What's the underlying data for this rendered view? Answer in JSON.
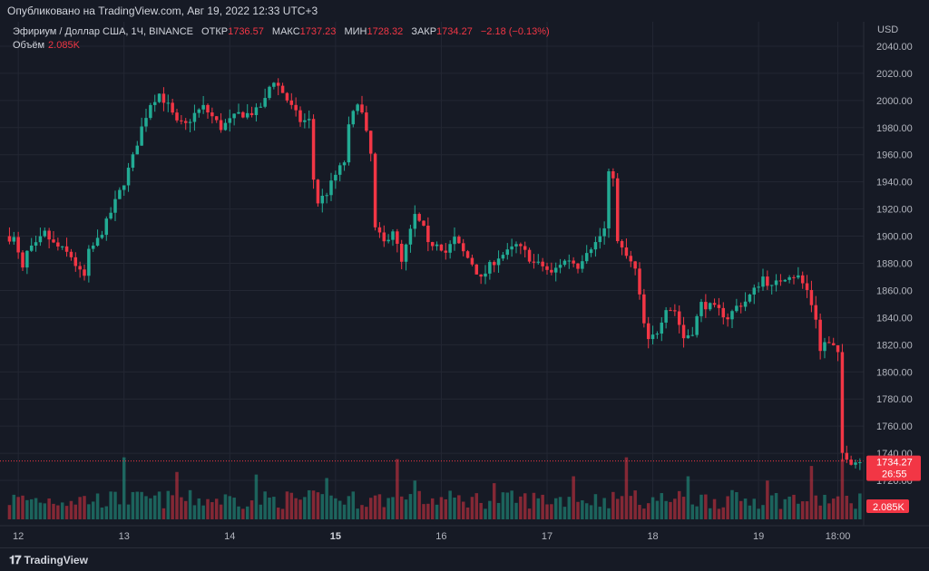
{
  "header": {
    "published": "Опубликовано на TradingView.com, Авг 19, 2022 12:33 UTC+3"
  },
  "legend": {
    "symbol": "Эфириум / Доллар США, 1Ч, BINANCE",
    "open_label": "ОТКР",
    "open_value": "1736.57",
    "high_label": "МАКС",
    "high_value": "1737.23",
    "low_label": "МИН",
    "low_value": "1728.32",
    "close_label": "ЗАКР",
    "close_value": "1734.27",
    "change": "−2.18 (−0.13%)",
    "volume_label": "Объём",
    "volume_value": "2.085K"
  },
  "footer": {
    "brand": "TradingView"
  },
  "colors": {
    "up": "#22ab94",
    "down": "#f23645",
    "background": "#161a25",
    "grid": "#232733"
  },
  "chart_data": {
    "type": "candlestick",
    "currency": "USD",
    "y_ticks": [
      1720,
      1740,
      1760,
      1780,
      1800,
      1820,
      1840,
      1860,
      1880,
      1900,
      1920,
      1940,
      1960,
      1980,
      2000,
      2020,
      2040
    ],
    "ylim": [
      1704,
      2058
    ],
    "x_ticks": [
      {
        "label": "12",
        "bar": 2,
        "bold": false
      },
      {
        "label": "13",
        "bar": 26,
        "bold": false
      },
      {
        "label": "14",
        "bar": 50,
        "bold": false
      },
      {
        "label": "15",
        "bar": 74,
        "bold": true
      },
      {
        "label": "16",
        "bar": 98,
        "bold": false
      },
      {
        "label": "17",
        "bar": 122,
        "bold": false
      },
      {
        "label": "18",
        "bar": 146,
        "bold": false
      },
      {
        "label": "19",
        "bar": 170,
        "bold": false
      },
      {
        "label": "18:00",
        "bar": 188,
        "bold": false
      }
    ],
    "last_price": "1734.27",
    "last_price_value": 1734.27,
    "countdown": "26:55",
    "last_volume": "2.085K",
    "waypoints": [
      [
        0,
        1900
      ],
      [
        2,
        1898
      ],
      [
        4,
        1875
      ],
      [
        5,
        1888
      ],
      [
        7,
        1893
      ],
      [
        9,
        1902
      ],
      [
        11,
        1894
      ],
      [
        13,
        1890
      ],
      [
        15,
        1885
      ],
      [
        17,
        1873
      ],
      [
        18,
        1870
      ],
      [
        19,
        1888
      ],
      [
        21,
        1897
      ],
      [
        23,
        1910
      ],
      [
        25,
        1925
      ],
      [
        27,
        1940
      ],
      [
        29,
        1958
      ],
      [
        31,
        1980
      ],
      [
        33,
        1998
      ],
      [
        35,
        2005
      ],
      [
        37,
        1996
      ],
      [
        39,
        1983
      ],
      [
        41,
        1982
      ],
      [
        43,
        1990
      ],
      [
        45,
        1995
      ],
      [
        47,
        1988
      ],
      [
        49,
        1980
      ],
      [
        51,
        1985
      ],
      [
        53,
        1990
      ],
      [
        55,
        1990
      ],
      [
        57,
        1992
      ],
      [
        59,
        2000
      ],
      [
        60,
        2010
      ],
      [
        61,
        2015
      ],
      [
        63,
        2006
      ],
      [
        65,
        1995
      ],
      [
        67,
        1985
      ],
      [
        69,
        1985
      ],
      [
        70,
        1942
      ],
      [
        71,
        1925
      ],
      [
        73,
        1932
      ],
      [
        75,
        1945
      ],
      [
        77,
        1955
      ],
      [
        78,
        1980
      ],
      [
        80,
        2000
      ],
      [
        81,
        1990
      ],
      [
        83,
        1960
      ],
      [
        84,
        1905
      ],
      [
        86,
        1895
      ],
      [
        88,
        1905
      ],
      [
        90,
        1880
      ],
      [
        91,
        1892
      ],
      [
        93,
        1915
      ],
      [
        95,
        1905
      ],
      [
        96,
        1893
      ],
      [
        98,
        1896
      ],
      [
        100,
        1888
      ],
      [
        102,
        1898
      ],
      [
        104,
        1888
      ],
      [
        106,
        1880
      ],
      [
        108,
        1868
      ],
      [
        110,
        1878
      ],
      [
        112,
        1885
      ],
      [
        114,
        1888
      ],
      [
        116,
        1893
      ],
      [
        118,
        1888
      ],
      [
        120,
        1880
      ],
      [
        122,
        1878
      ],
      [
        124,
        1872
      ],
      [
        126,
        1880
      ],
      [
        128,
        1883
      ],
      [
        130,
        1878
      ],
      [
        132,
        1890
      ],
      [
        134,
        1895
      ],
      [
        136,
        1905
      ],
      [
        137,
        1945
      ],
      [
        138,
        1945
      ],
      [
        139,
        1895
      ],
      [
        141,
        1885
      ],
      [
        143,
        1875
      ],
      [
        144,
        1855
      ],
      [
        145,
        1835
      ],
      [
        146,
        1822
      ],
      [
        148,
        1830
      ],
      [
        150,
        1848
      ],
      [
        152,
        1845
      ],
      [
        154,
        1825
      ],
      [
        156,
        1830
      ],
      [
        158,
        1850
      ],
      [
        160,
        1848
      ],
      [
        162,
        1845
      ],
      [
        164,
        1840
      ],
      [
        166,
        1848
      ],
      [
        168,
        1852
      ],
      [
        170,
        1860
      ],
      [
        172,
        1870
      ],
      [
        174,
        1862
      ],
      [
        176,
        1868
      ],
      [
        178,
        1872
      ],
      [
        180,
        1870
      ],
      [
        182,
        1860
      ],
      [
        184,
        1840
      ],
      [
        185,
        1815
      ],
      [
        186,
        1822
      ],
      [
        188,
        1818
      ],
      [
        189,
        1812
      ],
      [
        190,
        1740
      ],
      [
        191,
        1738
      ],
      [
        192,
        1734
      ]
    ],
    "volume_spikes": [
      [
        26,
        0.72
      ],
      [
        38,
        0.55
      ],
      [
        56,
        0.52
      ],
      [
        72,
        0.48
      ],
      [
        88,
        0.7
      ],
      [
        92,
        0.45
      ],
      [
        110,
        0.42
      ],
      [
        128,
        0.5
      ],
      [
        140,
        0.72
      ],
      [
        154,
        0.5
      ],
      [
        172,
        0.45
      ],
      [
        182,
        0.62
      ],
      [
        189,
        0.7
      ]
    ]
  }
}
